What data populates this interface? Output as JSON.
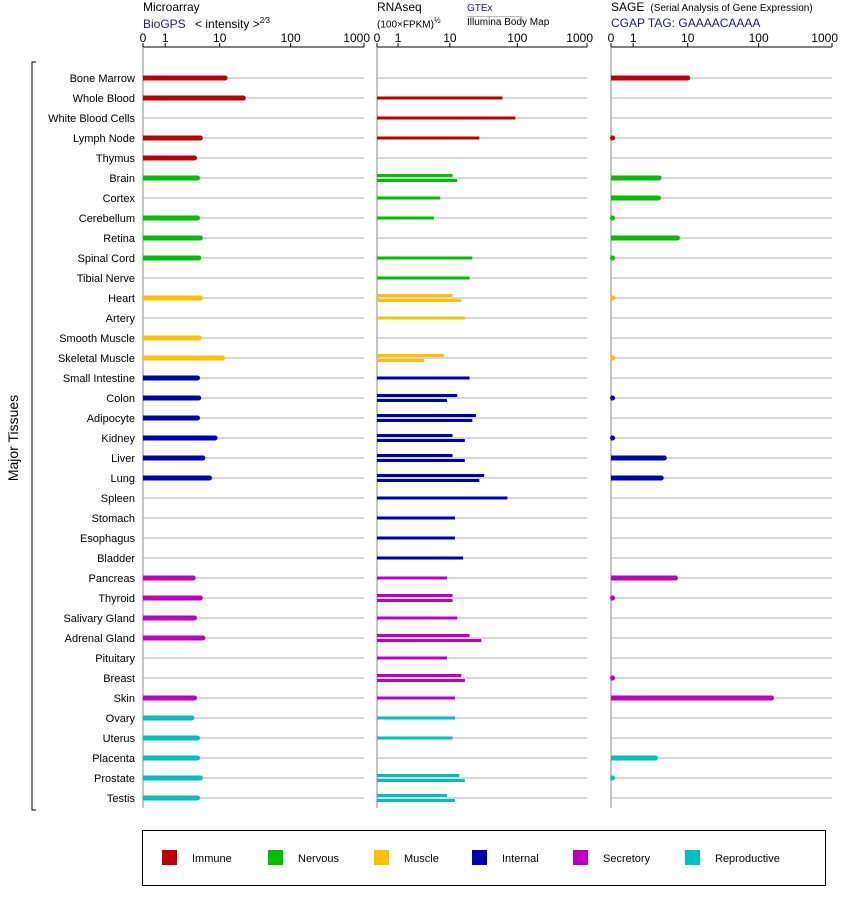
{
  "panels": {
    "microarray": {
      "title": "Microarray",
      "source": "BioGPS",
      "unit": "< intensity >",
      "exponent": "2⁄3"
    },
    "rnaseq": {
      "title": "RNAseq",
      "unit": "(100×FPKM)",
      "exponent": "½",
      "source_top": "GTEx",
      "source_bottom": "Illumina Body Map"
    },
    "sage": {
      "title": "SAGE",
      "subtitle": "(Serial Analysis of Gene Expression)",
      "source": "CGAP TAG: GAAAACAAAA"
    }
  },
  "colors": {
    "Immune": "#c00000",
    "Nervous": "#00c000",
    "Muscle": "#ffc000",
    "Internal": "#0000b4",
    "Secretory": "#c000c0",
    "Reproductive": "#00c0c0"
  },
  "chart_data": {
    "type": "bar",
    "orientation": "horizontal",
    "ylabel": "Major Tissues",
    "axis_ticks": [
      "0",
      "1",
      "10",
      "100",
      "1000"
    ],
    "axis_tick_values": [
      0,
      1,
      10,
      100,
      1000
    ],
    "xlim": [
      0,
      1000
    ],
    "legend": {
      "placement": "bottom",
      "entries": [
        "Immune",
        "Nervous",
        "Muscle",
        "Internal",
        "Secretory",
        "Reproductive"
      ]
    },
    "categories": [
      "Bone Marrow",
      "Whole Blood",
      "White Blood Cells",
      "Lymph Node",
      "Thymus",
      "Brain",
      "Cortex",
      "Cerebellum",
      "Retina",
      "Spinal Cord",
      "Tibial Nerve",
      "Heart",
      "Artery",
      "Smooth Muscle",
      "Skeletal Muscle",
      "Small Intestine",
      "Colon",
      "Adipocyte",
      "Kidney",
      "Liver",
      "Lung",
      "Spleen",
      "Stomach",
      "Esophagus",
      "Bladder",
      "Pancreas",
      "Thyroid",
      "Salivary Gland",
      "Adrenal Gland",
      "Pituitary",
      "Breast",
      "Skin",
      "Ovary",
      "Uterus",
      "Placenta",
      "Prostate",
      "Testis"
    ],
    "groups": [
      "Immune",
      "Immune",
      "Immune",
      "Immune",
      "Immune",
      "Nervous",
      "Nervous",
      "Nervous",
      "Nervous",
      "Nervous",
      "Nervous",
      "Muscle",
      "Muscle",
      "Muscle",
      "Muscle",
      "Internal",
      "Internal",
      "Internal",
      "Internal",
      "Internal",
      "Internal",
      "Internal",
      "Internal",
      "Internal",
      "Internal",
      "Secretory",
      "Secretory",
      "Secretory",
      "Secretory",
      "Secretory",
      "Secretory",
      "Secretory",
      "Reproductive",
      "Reproductive",
      "Reproductive",
      "Reproductive",
      "Reproductive"
    ],
    "microarray": [
      12,
      22,
      null,
      5,
      4,
      4.5,
      null,
      4.5,
      5,
      4.7,
      null,
      5,
      null,
      4.8,
      11,
      4.5,
      4.7,
      4.5,
      8.5,
      5.5,
      7,
      null,
      null,
      null,
      null,
      3.8,
      5,
      4,
      5.5,
      null,
      null,
      4,
      3.6,
      4.5,
      4.5,
      5,
      4.5
    ],
    "rnaseq_gtex": [
      null,
      61,
      94,
      null,
      null,
      11,
      7,
      null,
      null,
      22,
      null,
      11,
      null,
      null,
      8,
      null,
      13,
      25,
      11,
      11,
      33,
      null,
      null,
      null,
      null,
      null,
      11,
      null,
      20,
      null,
      15,
      null,
      null,
      null,
      null,
      14,
      9
    ],
    "rnaseq_illumina": [
      null,
      null,
      null,
      28,
      null,
      13,
      null,
      5.5,
      null,
      null,
      20,
      15,
      17,
      null,
      3.7,
      20,
      9,
      22,
      17,
      17,
      28,
      72,
      12,
      12,
      16,
      9,
      11,
      13,
      30,
      9,
      17,
      12,
      12,
      11,
      null,
      17,
      12
    ],
    "sage": [
      10,
      null,
      null,
      0.05,
      null,
      3.5,
      3.4,
      0.05,
      7,
      0.05,
      null,
      0.05,
      null,
      null,
      0.05,
      null,
      0.05,
      null,
      0.05,
      4.3,
      3.8,
      null,
      null,
      null,
      null,
      6.5,
      0.05,
      null,
      null,
      null,
      0.05,
      150,
      null,
      null,
      3,
      0.05,
      null
    ]
  }
}
